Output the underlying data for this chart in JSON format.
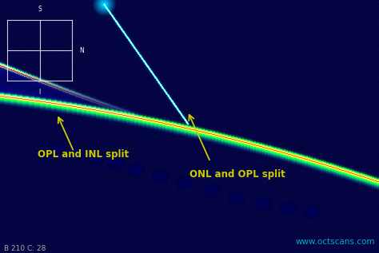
{
  "watermark": "www.octscans.com",
  "scan_label": "B 210 C: 28",
  "annotation1_text": "OPL and INL split",
  "annotation2_text": "ONL and OPL split",
  "bg_color": "#00003a",
  "text_color_yellow": "#cccc00",
  "text_color_cyan": "#00aacc",
  "text_color_white": "#aaaaaa",
  "figsize": [
    4.74,
    3.17
  ],
  "dpi": 100
}
